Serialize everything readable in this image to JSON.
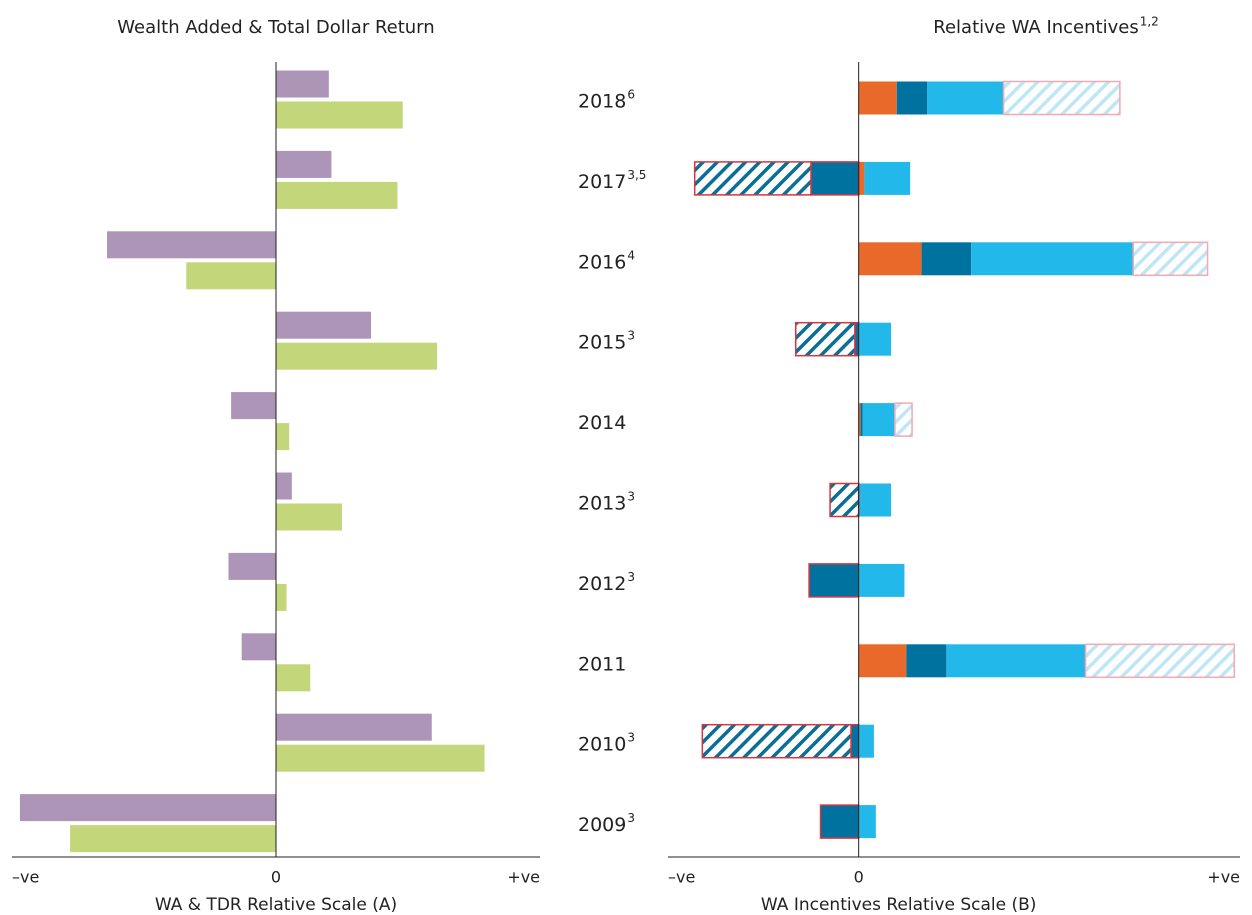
{
  "chart_data": [
    {
      "type": "bar",
      "orientation": "horizontal",
      "title": "Wealth Added & Total Dollar Return",
      "xlabel": "WA & TDR Relative Scale (A)",
      "xlim": [
        -1,
        1
      ],
      "xticks": [
        {
          "value": -1,
          "label": "–ve"
        },
        0,
        {
          "value": 1,
          "label": "+ve"
        }
      ],
      "series": [
        {
          "color": "#ac95b7",
          "values": [
            0.2,
            0.21,
            -0.64,
            0.36,
            -0.17,
            0.06,
            -0.18,
            -0.13,
            0.59,
            -0.97
          ]
        },
        {
          "color": "#c4d67a",
          "values": [
            0.48,
            0.46,
            -0.34,
            0.61,
            0.05,
            0.25,
            0.04,
            0.13,
            0.79,
            -0.78
          ]
        }
      ]
    },
    {
      "type": "stacked_bar",
      "orientation": "horizontal",
      "title": "Relative WA Incentives",
      "title_note": "1,2",
      "xlabel": "WA Incentives Relative Scale (B)",
      "xlim": [
        -1,
        2
      ],
      "xticks": [
        {
          "value": -1,
          "label": "–ve"
        },
        0,
        {
          "value": 2,
          "label": "+ve"
        }
      ],
      "categories": [
        "2018",
        "2017",
        "2016",
        "2015",
        "2014",
        "2013",
        "2012",
        "2011",
        "2010",
        "2009"
      ],
      "category_notes": [
        "6",
        "3,5",
        "4",
        "3",
        null,
        "3",
        "3",
        null,
        "3",
        "3"
      ],
      "series": [
        {
          "color": "#e8692a",
          "values": [
            0.2,
            0.03,
            0.33,
            null,
            0.01,
            null,
            null,
            0.25,
            null,
            null
          ]
        },
        {
          "color": "#0072a0",
          "edgecolor": "#d9343f",
          "values": [
            0.16,
            -0.25,
            0.26,
            -0.02,
            0.01,
            null,
            -0.26,
            0.21,
            -0.04,
            -0.2
          ]
        },
        {
          "color": "#22b8ea",
          "values": [
            0.4,
            0.24,
            0.85,
            0.17,
            0.17,
            0.17,
            0.24,
            0.73,
            0.08,
            0.09
          ]
        },
        {
          "color": "#bfe6f5",
          "edgecolor": "#f4a8b0",
          "hatch": true,
          "values": [
            0.61,
            null,
            0.39,
            null,
            0.09,
            null,
            null,
            0.78,
            null,
            null
          ]
        },
        {
          "color": "#0a6e96",
          "edgecolor": "#d9343f",
          "hatch": true,
          "values": [
            null,
            -0.61,
            null,
            -0.31,
            null,
            -0.15,
            null,
            null,
            -0.78,
            null
          ]
        }
      ]
    }
  ]
}
